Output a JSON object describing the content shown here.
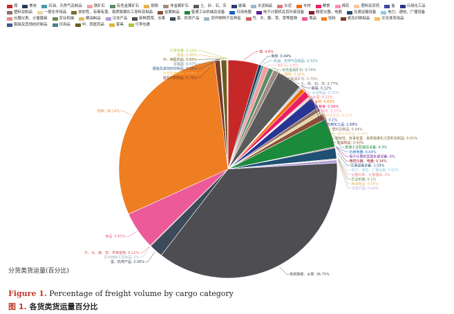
{
  "chart_data": {
    "type": "pie",
    "title": "",
    "legend_position": "top",
    "plot_caption": "分货类货运量(百分比)",
    "categories": [
      {
        "name": "煤",
        "value": 4.6,
        "label": "煤: 4.6%",
        "color": "#c62828"
      },
      {
        "name": "焦炭",
        "value": 0.44,
        "label": "焦炭: 0.44%",
        "color": "#1f3b5a"
      },
      {
        "name": "石油、天然气及制品",
        "value": 0.32,
        "label": "石油、天然气及制品: 0.32%",
        "color": "#4a9aa8"
      },
      {
        "name": "铁矿石",
        "value": 0.8,
        "label": "铁矿石: 0.8%",
        "color": "#f2a0a0"
      },
      {
        "name": "有色金属矿石",
        "value": 0.74,
        "label": "有色金属矿石: 0.74%",
        "color": "#5d8a68"
      },
      {
        "name": "钢铁",
        "value": 0.05,
        "label": "钢铁: 0.05%",
        "color": "#e8b04b"
      },
      {
        "name": "非金属矿石",
        "value": 0.79,
        "label": "非金属矿石: 0.79%",
        "color": "#9e8a7e"
      },
      {
        "name": "土、砂、石、灰",
        "value": 3.77,
        "label": "土、砂、石、灰: 3.77%",
        "color": "#5b5b5b"
      },
      {
        "name": "玻璃",
        "value": 0.12,
        "label": "玻璃: 0.12%",
        "color": "#2a3f6b"
      },
      {
        "name": "水泥制品",
        "value": 0.15,
        "label": "水泥制品: 0.15%",
        "color": "#93b7cf"
      },
      {
        "name": "水泥",
        "value": 0.11,
        "label": "水泥: 0.11%",
        "color": "#e57373"
      },
      {
        "name": "木材",
        "value": 0.63,
        "label": "木材: 0.63%",
        "color": "#ef6c00"
      },
      {
        "name": "粮食",
        "value": 0.99,
        "label": "粮食: 0.99%",
        "color": "#e91e63"
      },
      {
        "name": "棉花",
        "value": 0.15,
        "label": "棉花: 0.15%",
        "color": "#f48fb1"
      },
      {
        "name": "肥料及农药",
        "value": 0.15,
        "label": "肥料及农药: 0.15%",
        "color": "#f7c59f"
      },
      {
        "name": "盐",
        "value": 0.1,
        "label": "盐: 0.1%",
        "color": "#3949ab"
      },
      {
        "name": "日用化工品",
        "value": 1.68,
        "label": "日用化工品: 1.68%",
        "color": "#283593"
      },
      {
        "name": "塑料及制品",
        "value": 0.64,
        "label": "塑料及制品: 0.64%",
        "color": "#8d6e63"
      },
      {
        "name": "一般化学用品",
        "value": 0.48,
        "label": "一般化学用品: 0.48%",
        "color": "#e8d5a3"
      },
      {
        "name": "放射性、有毒有害、易燃易爆化工原料及制品",
        "value": 0.01,
        "label": "放射性、有毒有害、易燃易爆化工原料及制品: 0.01%",
        "color": "#7b6a2f"
      },
      {
        "name": "金属制品",
        "value": 0.93,
        "label": "金属制品: 0.93%",
        "color": "#8d4f38"
      },
      {
        "name": "普通工业机械及设备",
        "value": 4.3,
        "label": "普通工业机械及设备: 4.3%",
        "color": "#1b8a3a"
      },
      {
        "name": "日用电器",
        "value": 0.04,
        "label": "日用电器: 0.04%",
        "color": "#1565c0"
      },
      {
        "name": "电子计算机及其外部设备",
        "value": 0.0,
        "label": "电子计算机及其外部设备: 0%",
        "color": "#6a1b9a"
      },
      {
        "name": "精密仪器、电器",
        "value": 0.14,
        "label": "精密仪器、电器: 0.14%",
        "color": "#8b1a2b"
      },
      {
        "name": "交通运输设备",
        "value": 1.59,
        "label": "交通运输设备: 1.59%",
        "color": "#1f4f73"
      },
      {
        "name": "电力、通信、广播设备",
        "value": 0.02,
        "label": "电力、通信、广播设备: 0.02%",
        "color": "#8ecae6"
      },
      {
        "name": "仪器仪表、计量器具",
        "value": 0.0,
        "label": "仪器仪表、计量器具: 0%",
        "color": "#e88a8a"
      },
      {
        "name": "农业机械",
        "value": 0.1,
        "label": "农业机械: 0.1%",
        "color": "#6d8a4f"
      },
      {
        "name": "粮油制品",
        "value": 0.08,
        "label": "粮油制品: 0.08%",
        "color": "#e6b86a"
      },
      {
        "name": "冷冻产品",
        "value": 0.44,
        "label": "冷冻产品: 0.44%",
        "color": "#b39ddb"
      },
      {
        "name": "新鲜蔬菜、水果",
        "value": 36.75,
        "label": "新鲜蔬菜、水果: 36.75%",
        "color": "#4d4d52"
      },
      {
        "name": "蛋、奶类产品",
        "value": 2.06,
        "label": "蛋、奶类产品: 2.06%",
        "color": "#3d4a59"
      },
      {
        "name": "农作物种子及种苗",
        "value": 0.0,
        "label": "农作物种子及种苗: 0%",
        "color": "#9fb7c9"
      },
      {
        "name": "竹、木、藤、草、草等植物",
        "value": 0.12,
        "label": "竹、木、藤、草、草等植物: 0.12%",
        "color": "#d35f5f"
      },
      {
        "name": "食品",
        "value": 5.63,
        "label": "食品: 5.63%",
        "color": "#ec5a99"
      },
      {
        "name": "饮料",
        "value": 30.14,
        "label": "饮料: 30.14%",
        "color": "#ef7d22"
      },
      {
        "name": "纸及印刷制品",
        "value": 0.79,
        "label": "纸及印刷制品: 0.79%",
        "color": "#7a3d2a"
      },
      {
        "name": "文化体育用品",
        "value": 0.04,
        "label": "文化体育用品: 0.04%",
        "color": "#f3bf5b"
      },
      {
        "name": "服装及其他纺织制品",
        "value": 0.04,
        "label": "服装及其他纺织制品: 0.04%",
        "color": "#3a5a8c"
      },
      {
        "name": "日用品",
        "value": 0.07,
        "label": "日用品: 0.07%",
        "color": "#4b7c8f"
      },
      {
        "name": "中、西医药品",
        "value": 0.83,
        "label": "中、西医药品: 0.83%",
        "color": "#6b5b1e"
      },
      {
        "name": "家具",
        "value": 0.08,
        "label": "家具: 0.08%",
        "color": "#e0b83a"
      },
      {
        "name": "行李包裹",
        "value": 0.12,
        "label": "行李包裹: 0.12%",
        "color": "#a5c93a"
      }
    ]
  },
  "caption": {
    "en_label": "Figure 1.",
    "en_text": "Percentage of freight volume by cargo category",
    "cn_label": "图 1.",
    "cn_text": "各货类货运量百分比"
  }
}
